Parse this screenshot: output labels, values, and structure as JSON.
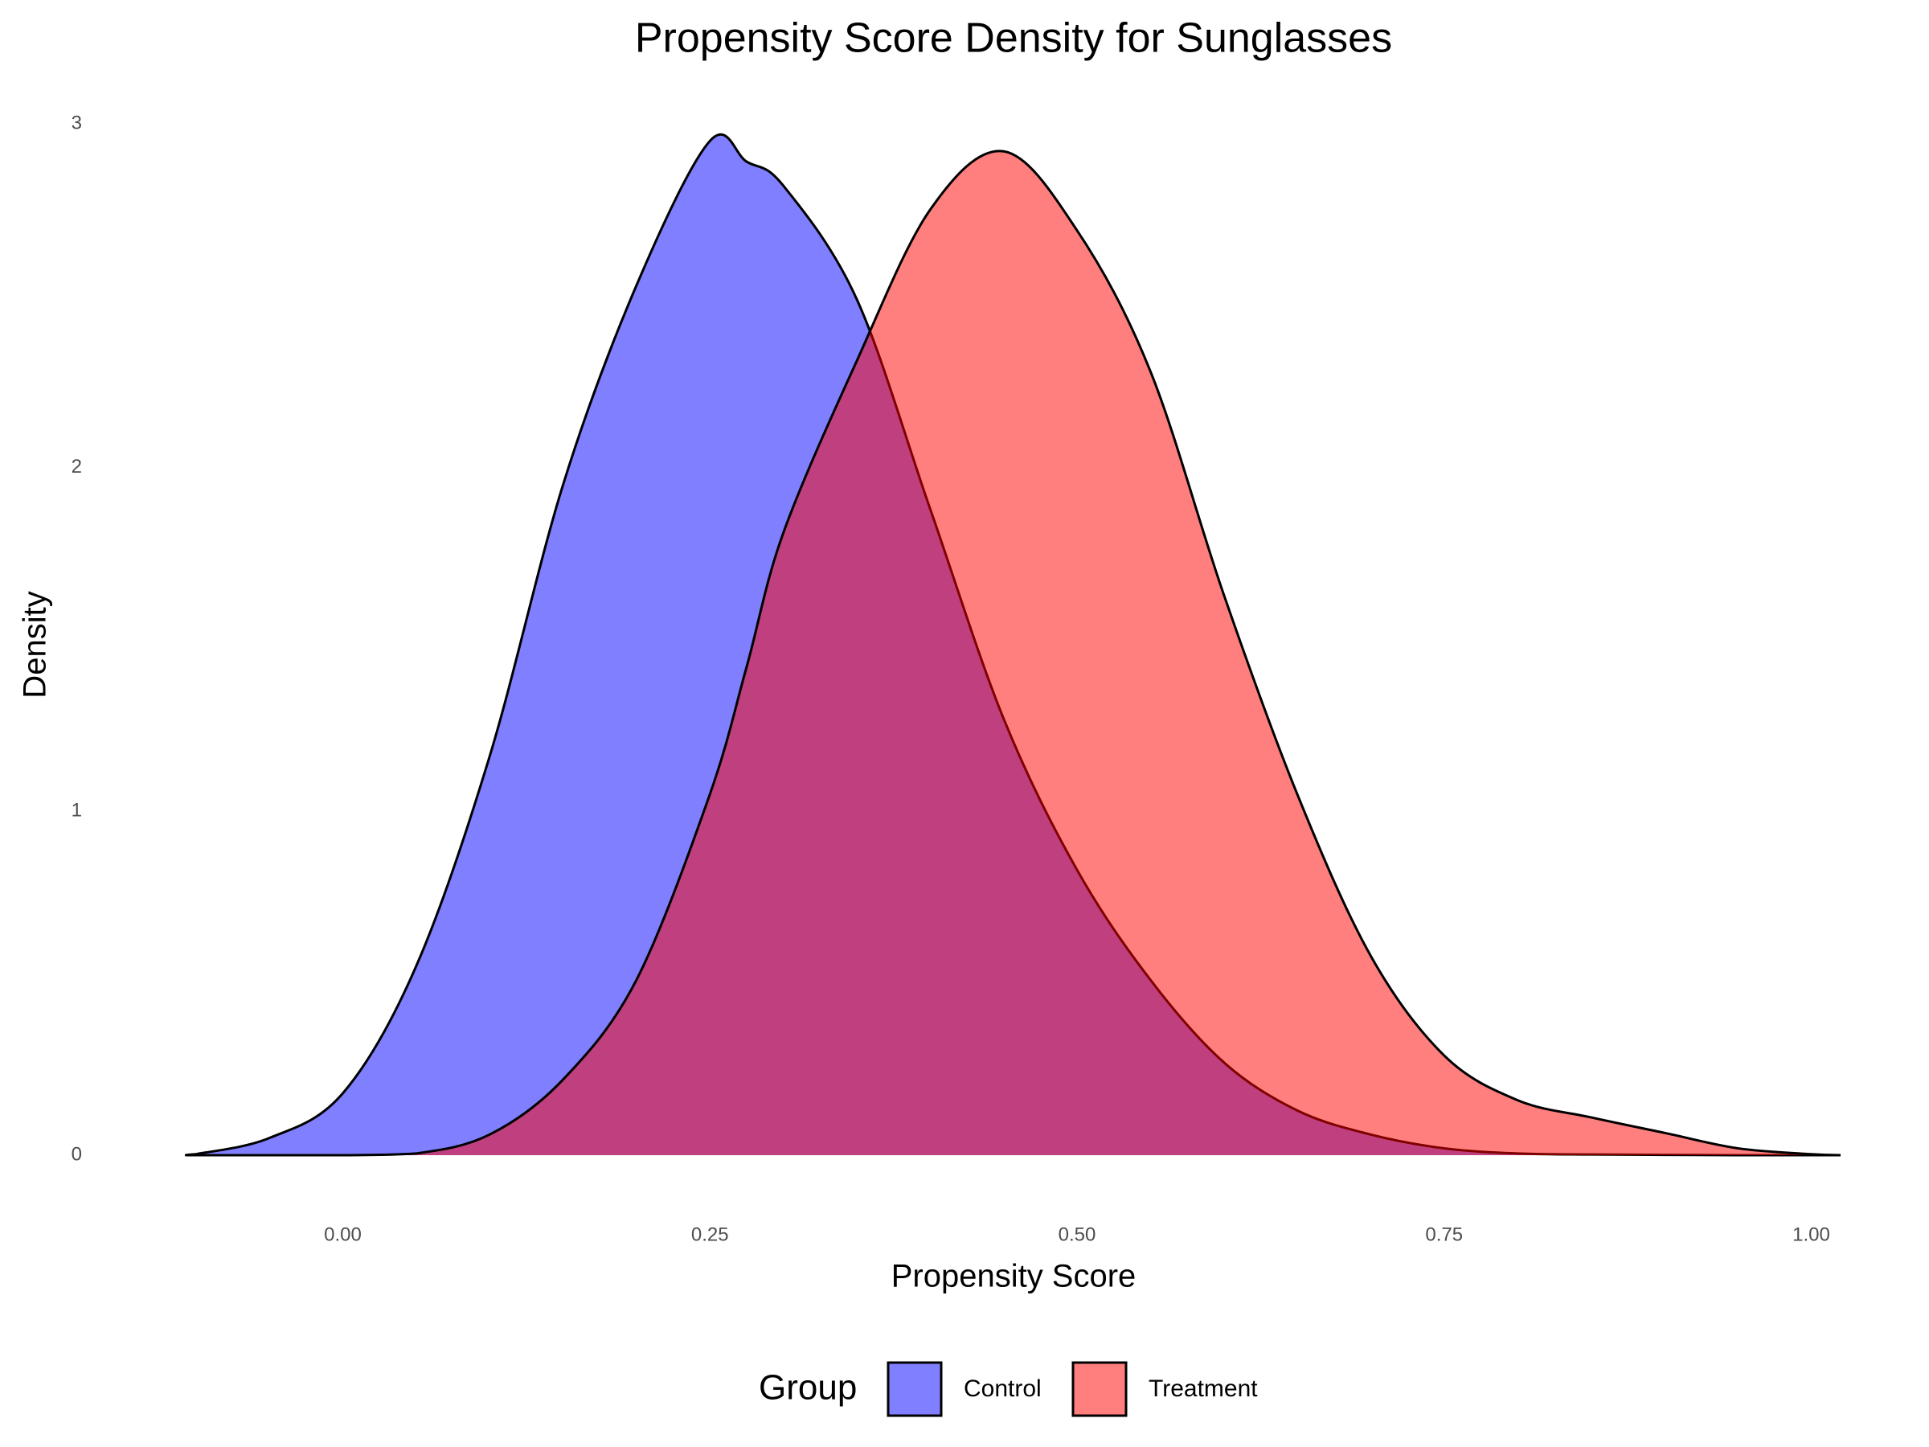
{
  "chart_data": {
    "type": "density",
    "title": "Propensity Score Density for Sunglasses",
    "x_label": "Propensity Score",
    "y_label": "Density",
    "legend_title": "Group",
    "legend_position": "bottom",
    "alpha": 0.5,
    "x": [
      -0.107,
      -0.1,
      -0.05,
      0,
      0.05,
      0.1,
      0.15,
      0.2,
      0.25,
      0.275,
      0.3,
      0.35,
      0.4,
      0.45,
      0.5,
      0.55,
      0.6,
      0.65,
      0.7,
      0.75,
      0.8,
      0.85,
      0.9,
      0.95,
      1.0,
      1.02
    ],
    "series": [
      {
        "name": "Control",
        "color": "#0000ff",
        "values": [
          0,
          0.003,
          0.05,
          0.18,
          0.55,
          1.16,
          1.95,
          2.53,
          2.95,
          2.89,
          2.82,
          2.49,
          1.88,
          1.27,
          0.83,
          0.51,
          0.27,
          0.13,
          0.06,
          0.02,
          0.005,
          0.002,
          0.001,
          0,
          0,
          0
        ]
      },
      {
        "name": "Treatment",
        "color": "#ff0000",
        "values": [
          0,
          0,
          0,
          0,
          0.005,
          0.06,
          0.22,
          0.51,
          1.05,
          1.42,
          1.81,
          2.31,
          2.75,
          2.92,
          2.69,
          2.28,
          1.63,
          1.05,
          0.58,
          0.29,
          0.16,
          0.11,
          0.065,
          0.02,
          0.003,
          0
        ]
      }
    ],
    "xlim": [
      -0.107,
      1.02
    ],
    "ylim": [
      0,
      3
    ],
    "xticks": [
      {
        "value": 0,
        "label": "0.00"
      },
      {
        "value": 0.25,
        "label": "0.25"
      },
      {
        "value": 0.5,
        "label": "0.50"
      },
      {
        "value": 0.75,
        "label": "0.75"
      },
      {
        "value": 1,
        "label": "1.00"
      }
    ],
    "yticks": [
      0,
      1,
      2,
      3
    ],
    "grid": false
  }
}
